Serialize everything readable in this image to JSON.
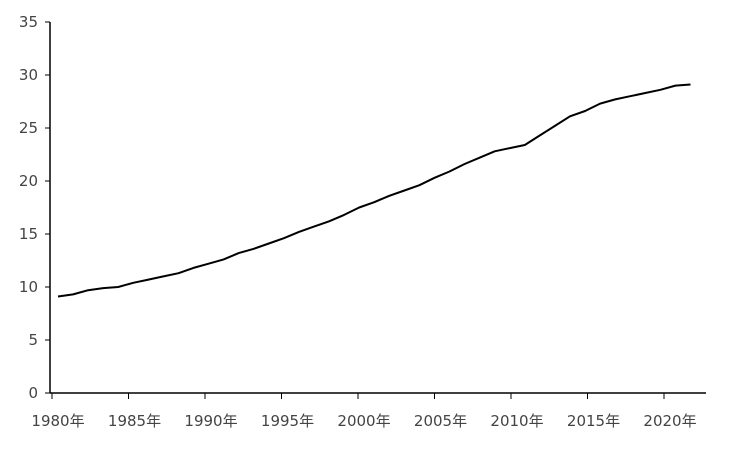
{
  "chart_data": {
    "type": "line",
    "title": "",
    "xlabel": "",
    "ylabel": "",
    "x": [
      1980,
      1981,
      1982,
      1983,
      1984,
      1985,
      1986,
      1987,
      1988,
      1989,
      1990,
      1991,
      1992,
      1993,
      1994,
      1995,
      1996,
      1997,
      1998,
      1999,
      2000,
      2001,
      2002,
      2003,
      2004,
      2005,
      2006,
      2007,
      2008,
      2009,
      2010,
      2011,
      2012,
      2013,
      2014,
      2015,
      2016,
      2017,
      2018,
      2019,
      2020,
      2021,
      2022
    ],
    "series": [
      {
        "values": [
          9.1,
          9.3,
          9.7,
          9.9,
          10.0,
          10.4,
          10.7,
          11.0,
          11.3,
          11.8,
          12.2,
          12.6,
          13.2,
          13.6,
          14.1,
          14.6,
          15.2,
          15.7,
          16.2,
          16.8,
          17.5,
          18.0,
          18.6,
          19.1,
          19.6,
          20.3,
          20.9,
          21.6,
          22.2,
          22.8,
          23.1,
          23.4,
          24.3,
          25.2,
          26.1,
          26.6,
          27.3,
          27.7,
          28.0,
          28.3,
          28.6,
          29.0,
          29.1
        ],
        "color": "#000000"
      }
    ],
    "xlim": [
      1980,
      2022.5
    ],
    "ylim": [
      0,
      35
    ],
    "yticks": [
      "0",
      "5",
      "10",
      "15",
      "20",
      "25",
      "30",
      "35"
    ],
    "xticks": [
      "1980年",
      "1985年",
      "1990年",
      "1995年",
      "2000年",
      "2005年",
      "2010年",
      "2015年",
      "2020年"
    ],
    "grid": false,
    "legend": "none"
  }
}
